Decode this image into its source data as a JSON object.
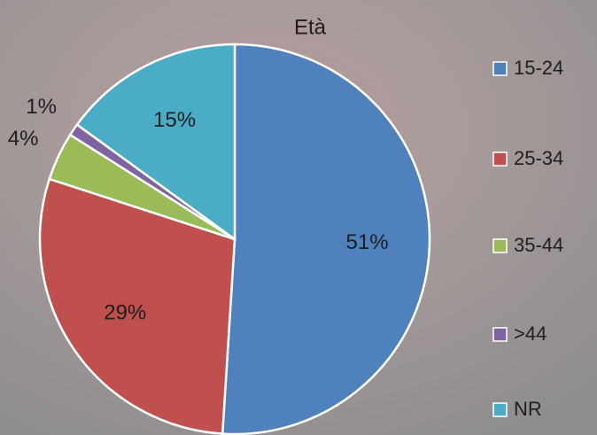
{
  "chart_data": {
    "type": "pie",
    "title": "Età",
    "categories": [
      "15-24",
      "25-34",
      "35-44",
      ">44",
      "NR"
    ],
    "values": [
      51,
      29,
      4,
      1,
      15
    ],
    "value_labels": [
      "51%",
      "29%",
      "4%",
      "1%",
      "15%"
    ],
    "colors": [
      "#4f81bd",
      "#c0504d",
      "#9bbb59",
      "#8064a2",
      "#4bacc6"
    ],
    "legend": "right"
  }
}
